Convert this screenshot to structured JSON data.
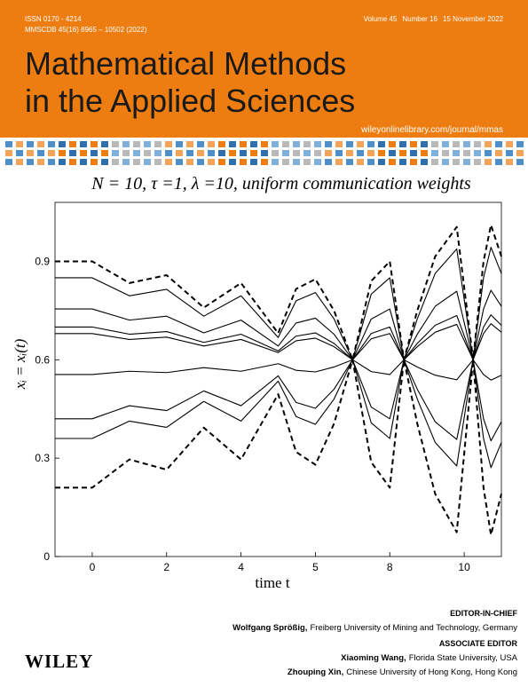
{
  "header": {
    "issn": "ISSN 0170 - 4214",
    "coden": "MMSCDB 45(16) 8965 – 10502 (2022)",
    "volume": "Volume 45",
    "number": "Number 16",
    "date": "15 November 2022",
    "title_lines": [
      "Mathematical Methods",
      "in the Applied Sciences"
    ],
    "url": "wileyonlinelibrary.com/journal/mmas"
  },
  "chart_data": {
    "type": "line",
    "title": "N = 10, τ =1, λ =10, uniform communication weights",
    "x_label": "time t",
    "y_label": "xᵢ = xᵢ(t)",
    "categories": [
      "0",
      "2",
      "4",
      "5",
      "8",
      "10"
    ],
    "x": [
      -0.5,
      0,
      0.5,
      1,
      1.5,
      2,
      2.5,
      2.74,
      3,
      3.25,
      3.5,
      3.75,
      4,
      4.19,
      4.37,
      4.61,
      4.9,
      5.12,
      5.26,
      5.36,
      5.5
    ],
    "xlim": [
      -0.5,
      5.5
    ],
    "ylim": [
      0,
      1.08
    ],
    "yticks": [
      0,
      0.3,
      0.6,
      0.9
    ],
    "series": [
      {
        "color": "#000000",
        "style": "dashed",
        "values": [
          0.9,
          0.9,
          0.834,
          0.858,
          0.759,
          0.834,
          0.681,
          0.816,
          0.846,
          0.75,
          0.6,
          0.84,
          0.9,
          0.6,
          0.75,
          0.915,
          1.005,
          0.6,
          0.9,
          1.011,
          0.915
        ]
      },
      {
        "color": "#000000",
        "style": "solid",
        "values": [
          0.85,
          0.85,
          0.795,
          0.815,
          0.733,
          0.795,
          0.668,
          0.78,
          0.805,
          0.725,
          0.6,
          0.8,
          0.85,
          0.6,
          0.725,
          0.863,
          0.938,
          0.6,
          0.85,
          0.943,
          0.863
        ]
      },
      {
        "color": "#000000",
        "style": "solid",
        "values": [
          0.755,
          0.755,
          0.721,
          0.733,
          0.682,
          0.721,
          0.642,
          0.712,
          0.727,
          0.678,
          0.6,
          0.724,
          0.755,
          0.6,
          0.678,
          0.763,
          0.809,
          0.6,
          0.755,
          0.812,
          0.763
        ]
      },
      {
        "color": "#000000",
        "style": "solid",
        "values": [
          0.7,
          0.7,
          0.678,
          0.686,
          0.653,
          0.678,
          0.627,
          0.672,
          0.682,
          0.65,
          0.6,
          0.68,
          0.7,
          0.6,
          0.65,
          0.705,
          0.735,
          0.6,
          0.7,
          0.737,
          0.705
        ]
      },
      {
        "color": "#000000",
        "style": "solid",
        "values": [
          0.68,
          0.68,
          0.662,
          0.669,
          0.642,
          0.662,
          0.622,
          0.658,
          0.666,
          0.64,
          0.6,
          0.664,
          0.68,
          0.6,
          0.64,
          0.684,
          0.708,
          0.6,
          0.68,
          0.71,
          0.684
        ]
      },
      {
        "color": "#000000",
        "style": "solid",
        "values": [
          0.555,
          0.555,
          0.565,
          0.561,
          0.576,
          0.565,
          0.588,
          0.568,
          0.563,
          0.578,
          0.6,
          0.564,
          0.555,
          0.6,
          0.578,
          0.553,
          0.539,
          0.6,
          0.555,
          0.538,
          0.553
        ]
      },
      {
        "color": "#000000",
        "style": "solid",
        "values": [
          0.42,
          0.42,
          0.46,
          0.445,
          0.505,
          0.46,
          0.551,
          0.47,
          0.452,
          0.51,
          0.6,
          0.456,
          0.42,
          0.6,
          0.51,
          0.411,
          0.357,
          0.6,
          0.42,
          0.353,
          0.411
        ]
      },
      {
        "color": "#000000",
        "style": "solid",
        "values": [
          0.36,
          0.36,
          0.413,
          0.394,
          0.473,
          0.413,
          0.535,
          0.427,
          0.403,
          0.48,
          0.6,
          0.408,
          0.36,
          0.6,
          0.48,
          0.348,
          0.276,
          0.6,
          0.36,
          0.271,
          0.348
        ]
      },
      {
        "color": "#000000",
        "style": "dashed",
        "values": [
          0.21,
          0.21,
          0.296,
          0.265,
          0.393,
          0.296,
          0.495,
          0.319,
          0.28,
          0.405,
          0.6,
          0.288,
          0.21,
          0.6,
          0.405,
          0.191,
          0.074,
          0.6,
          0.21,
          0.066,
          0.191
        ]
      }
    ]
  },
  "footer": {
    "editor_heading": "EDITOR-IN-CHIEF",
    "editor_name": "Wolfgang Sprößig,",
    "editor_affiliation": "Freiberg University of Mining and Technology, Germany",
    "associate_heading": "ASSOCIATE EDITOR",
    "associates": [
      {
        "name": "Xiaoming Wang,",
        "affiliation": "Florida State University, USA"
      },
      {
        "name": "Zhouping Xin,",
        "affiliation": "Chinese University of Hong Kong, Hong Kong"
      }
    ],
    "publisher": "WILEY"
  }
}
